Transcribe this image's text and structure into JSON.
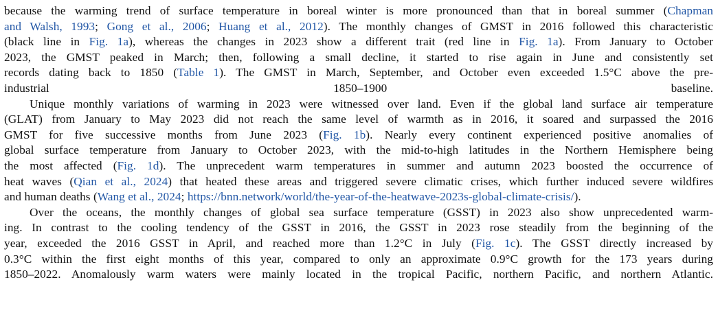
{
  "paragraphs": [
    {
      "id": "p1",
      "lines": [
        [
          {
            "t": "because the warming trend of surface temperature in boreal winter is more pronounced than that in boreal summer ("
          },
          {
            "t": "Chapman",
            "ref": true
          }
        ],
        [
          {
            "t": "and Walsh, 1993",
            "ref": true
          },
          {
            "t": "; "
          },
          {
            "t": "Gong et al., 2006",
            "ref": true
          },
          {
            "t": "; "
          },
          {
            "t": "Huang et al., 2012",
            "ref": true
          },
          {
            "t": "). The monthly changes of GMST in 2016 followed this characteristic"
          }
        ],
        [
          {
            "t": "(black line in "
          },
          {
            "t": "Fig. 1a",
            "ref": true
          },
          {
            "t": "), whereas the changes in 2023 show a different trait (red line in "
          },
          {
            "t": "Fig. 1a",
            "ref": true
          },
          {
            "t": "). From January to October"
          }
        ],
        [
          {
            "t": "2023, the GMST peaked in March; then, following a small decline, it started to rise again in June and consistently set"
          }
        ],
        [
          {
            "t": "records dating back to 1850 ("
          },
          {
            "t": "Table 1",
            "ref": true
          },
          {
            "t": "). The GMST in March, September, and October even exceeded 1.5°C above the pre-"
          }
        ],
        [
          {
            "t": "industrial 1850–1900 baseline."
          }
        ]
      ]
    },
    {
      "id": "p2",
      "lines": [
        [
          {
            "t": "Unique monthly variations of warming in 2023 were witnessed over land. Even if the global land surface air temperature"
          }
        ],
        [
          {
            "t": "(GLAT) from January to May 2023 did not reach the same level of warmth as in 2016, it soared and surpassed the 2016"
          }
        ],
        [
          {
            "t": "GMST for five successive months from June 2023 ("
          },
          {
            "t": "Fig. 1b",
            "ref": true
          },
          {
            "t": "). Nearly every continent experienced positive anomalies of"
          }
        ],
        [
          {
            "t": "global surface temperature from January to October 2023, with the mid-to-high latitudes in the Northern Hemisphere being"
          }
        ],
        [
          {
            "t": "the most affected ("
          },
          {
            "t": "Fig. 1d",
            "ref": true
          },
          {
            "t": "). The unprecedent warm temperatures in summer and autumn 2023 boosted the occurrence of"
          }
        ],
        [
          {
            "t": "heat waves ("
          },
          {
            "t": "Qian et al., 2024",
            "ref": true
          },
          {
            "t": ") that heated these areas and triggered severe climatic crises, which further induced severe wildfires"
          }
        ],
        [
          {
            "t": "and human deaths ("
          },
          {
            "t": "Wang et al., 2024",
            "ref": true
          },
          {
            "t": "; "
          },
          {
            "t": "https://bnn.network/world/the-year-of-the-heatwave-2023s-global-climate-crisis/",
            "ref": true
          },
          {
            "t": ")."
          }
        ]
      ]
    },
    {
      "id": "p3",
      "lines": [
        [
          {
            "t": "Over the oceans, the monthly changes of global sea surface temperature (GSST) in 2023 also show unprecedented warm-"
          }
        ],
        [
          {
            "t": "ing. In contrast to the cooling tendency of the GSST in 2016, the GSST in 2023 rose steadily from the beginning of the"
          }
        ],
        [
          {
            "t": "year, exceeded the 2016 GSST in April, and reached more than 1.2°C in July ("
          },
          {
            "t": "Fig. 1c",
            "ref": true
          },
          {
            "t": "). The GSST directly increased by"
          }
        ],
        [
          {
            "t": "0.3°C within the first eight months of this year, compared to only an approximate 0.9°C growth for the 173 years during"
          }
        ],
        [
          {
            "t": "1850–2022. Anomalously warm waters were mainly located in the tropical Pacific, northern Pacific, and northern Atlantic."
          }
        ]
      ]
    }
  ],
  "colors": {
    "text": "#111111",
    "link": "#2156a5",
    "background": "#ffffff"
  }
}
